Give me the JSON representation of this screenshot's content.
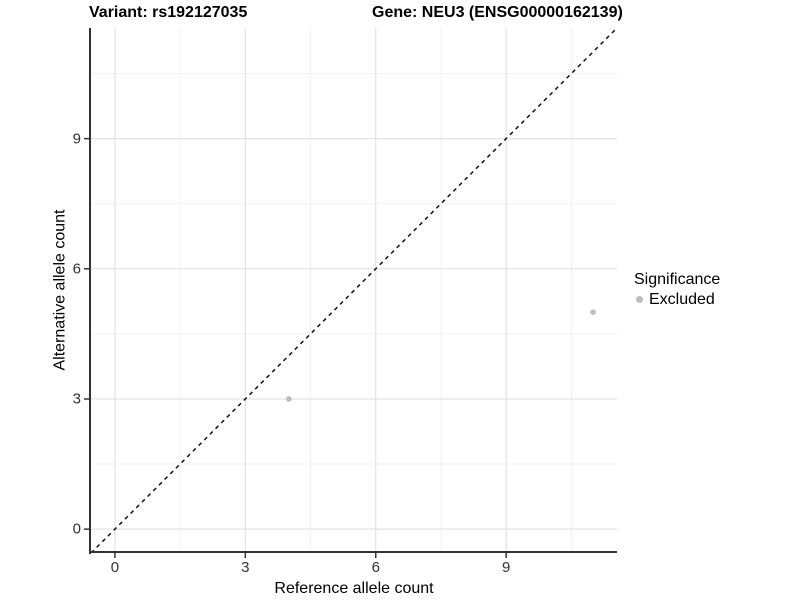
{
  "titles": {
    "variant": "Variant: rs192127035",
    "gene": "Gene: NEU3 (ENSG00000162139)"
  },
  "axes": {
    "x": {
      "label": "Reference allele count"
    },
    "y": {
      "label": "Alternative allele count"
    }
  },
  "legend": {
    "title": "Significance",
    "items": [
      {
        "label": "Excluded",
        "color": "#bdbdbd"
      }
    ]
  },
  "chart_data": {
    "type": "scatter",
    "title": "Variant: rs192127035 — Gene: NEU3 (ENSG00000162139)",
    "xlabel": "Reference allele count",
    "ylabel": "Alternative allele count",
    "xlim": [
      -0.55,
      11.55
    ],
    "ylim": [
      -0.55,
      11.55
    ],
    "x_ticks": [
      0,
      3,
      6,
      9
    ],
    "y_ticks": [
      0,
      3,
      6,
      9
    ],
    "minor_gridlines": [
      1.5,
      4.5,
      7.5,
      10.5
    ],
    "series": [
      {
        "name": "Excluded",
        "color": "#bdbdbd",
        "point_radius_px": 2.8,
        "points": [
          [
            4,
            3
          ],
          [
            11,
            5
          ]
        ]
      }
    ],
    "reference_line": {
      "kind": "identity",
      "equation": "y = x",
      "style": "dashed",
      "color": "#111111"
    },
    "legend": {
      "title": "Significance",
      "position": "right",
      "entries": [
        "Excluded"
      ]
    },
    "grid": true,
    "colors": {
      "grid_major": "#e3e3e3",
      "grid_minor": "#f1f1f1",
      "axis": "#333333",
      "tick_label": "#333333"
    }
  }
}
